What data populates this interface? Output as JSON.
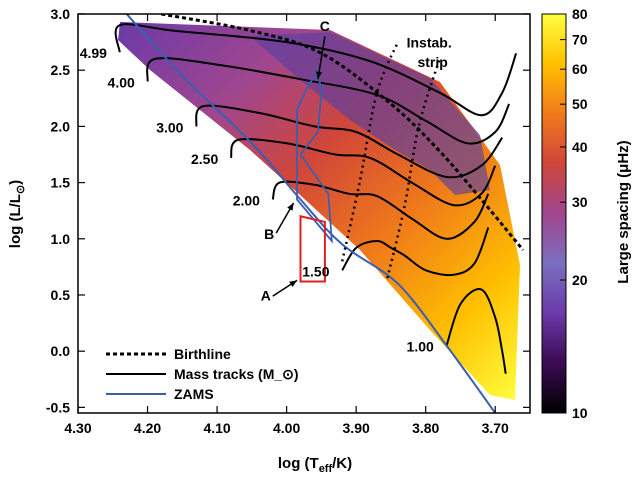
{
  "chart_data": {
    "type": "scatter",
    "xlabel": "log (T_eff/K)",
    "ylabel": "log (L/L_⊙)",
    "xlim": [
      4.3,
      3.65
    ],
    "ylim": [
      -0.55,
      3.0
    ],
    "x_inverted": true,
    "xticks": [
      "4.30",
      "4.20",
      "4.10",
      "4.00",
      "3.90",
      "3.80",
      "3.70"
    ],
    "yticks": [
      "3.0",
      "2.5",
      "2.0",
      "1.5",
      "1.0",
      "0.5",
      "0.0",
      "-0.5"
    ],
    "colorbar": {
      "label": "Large spacing (μHz)",
      "scale": "log",
      "range": [
        10,
        80
      ],
      "ticks": [
        "80",
        "70",
        "60",
        "50",
        "40",
        "30",
        "20",
        "10"
      ],
      "colormap": [
        "#000000",
        "#3a0a52",
        "#6b3aa8",
        "#7a6fc0",
        "#a0468e",
        "#d0463a",
        "#f07a1a",
        "#ffc000",
        "#ffff40"
      ]
    },
    "legend": {
      "placement": "bottom-left",
      "entries": [
        {
          "label": "Birthline",
          "style": "dashed",
          "color": "#000000"
        },
        {
          "label": "Mass tracks (M_⊙)",
          "style": "solid",
          "color": "#000000"
        },
        {
          "label": "ZAMS",
          "style": "solid",
          "color": "#3a5fb0"
        }
      ]
    },
    "mass_labels": [
      "4.99",
      "4.00",
      "3.00",
      "2.50",
      "2.00",
      "1.50",
      "1.00"
    ],
    "annotations": [
      {
        "text": "Instab.",
        "x": 3.795,
        "y": 2.7
      },
      {
        "text": "strip",
        "x": 3.79,
        "y": 2.53
      },
      {
        "text": "A",
        "x": 4.03,
        "y": 0.45
      },
      {
        "text": "B",
        "x": 4.025,
        "y": 1.0
      },
      {
        "text": "C",
        "x": 3.945,
        "y": 2.85
      }
    ],
    "zams": [
      [
        4.23,
        3.0
      ],
      [
        4.15,
        2.45
      ],
      [
        4.05,
        1.85
      ],
      [
        3.98,
        1.35
      ],
      [
        3.92,
        0.95
      ],
      [
        3.84,
        0.6
      ],
      [
        3.77,
        0.05
      ],
      [
        3.7,
        -0.55
      ]
    ],
    "birthline": [
      [
        4.18,
        3.0
      ],
      [
        4.05,
        2.85
      ],
      [
        3.95,
        2.65
      ],
      [
        3.85,
        2.2
      ],
      [
        3.78,
        1.78
      ],
      [
        3.72,
        1.35
      ],
      [
        3.66,
        0.9
      ]
    ],
    "instability_strip": [
      [
        [
          3.92,
          0.8
        ],
        [
          3.895,
          1.5
        ],
        [
          3.87,
          2.3
        ],
        [
          3.84,
          2.75
        ]
      ],
      [
        [
          3.855,
          0.65
        ],
        [
          3.83,
          1.3
        ],
        [
          3.81,
          2.0
        ],
        [
          3.78,
          2.6
        ]
      ]
    ],
    "box_A": [
      [
        3.98,
        0.62
      ],
      [
        3.945,
        0.62
      ],
      [
        3.945,
        1.15
      ],
      [
        3.98,
        1.2
      ]
    ],
    "region_BC": [
      [
        3.98,
        1.75
      ],
      [
        3.94,
        1.4
      ],
      [
        3.935,
        0.98
      ],
      [
        3.985,
        1.35
      ],
      [
        3.985,
        2.15
      ],
      [
        3.97,
        2.35
      ],
      [
        3.955,
        2.5
      ],
      [
        3.95,
        2.3
      ],
      [
        3.955,
        1.95
      ]
    ],
    "mass_tracks": [
      {
        "label": "4.99",
        "points": [
          [
            4.24,
            2.66
          ],
          [
            4.24,
            2.9
          ],
          [
            4.16,
            2.85
          ],
          [
            4.0,
            2.75
          ],
          [
            3.88,
            2.58
          ],
          [
            3.78,
            2.3
          ],
          [
            3.72,
            2.1
          ],
          [
            3.69,
            2.3
          ],
          [
            3.67,
            2.65
          ]
        ]
      },
      {
        "label": "4.00",
        "points": [
          [
            4.2,
            2.4
          ],
          [
            4.19,
            2.6
          ],
          [
            4.1,
            2.55
          ],
          [
            3.98,
            2.42
          ],
          [
            3.87,
            2.28
          ],
          [
            3.8,
            2.05
          ],
          [
            3.74,
            1.85
          ],
          [
            3.7,
            1.95
          ],
          [
            3.68,
            2.2
          ]
        ]
      },
      {
        "label": "3.00",
        "points": [
          [
            4.13,
            2.0
          ],
          [
            4.12,
            2.18
          ],
          [
            4.04,
            2.12
          ],
          [
            3.96,
            2.0
          ],
          [
            3.9,
            1.95
          ],
          [
            3.84,
            1.75
          ],
          [
            3.77,
            1.55
          ],
          [
            3.72,
            1.65
          ],
          [
            3.69,
            1.9
          ]
        ]
      },
      {
        "label": "2.50",
        "points": [
          [
            4.08,
            1.72
          ],
          [
            4.07,
            1.88
          ],
          [
            4.0,
            1.85
          ],
          [
            3.93,
            1.75
          ],
          [
            3.88,
            1.72
          ],
          [
            3.82,
            1.5
          ],
          [
            3.76,
            1.3
          ],
          [
            3.72,
            1.4
          ],
          [
            3.7,
            1.65
          ]
        ]
      },
      {
        "label": "2.00",
        "points": [
          [
            4.02,
            1.35
          ],
          [
            4.01,
            1.5
          ],
          [
            3.96,
            1.48
          ],
          [
            3.91,
            1.4
          ],
          [
            3.87,
            1.38
          ],
          [
            3.82,
            1.18
          ],
          [
            3.77,
            1.0
          ],
          [
            3.73,
            1.15
          ],
          [
            3.71,
            1.4
          ]
        ]
      },
      {
        "label": "1.50",
        "points": [
          [
            3.92,
            0.72
          ],
          [
            3.9,
            0.92
          ],
          [
            3.87,
            0.98
          ],
          [
            3.85,
            0.92
          ],
          [
            3.83,
            0.85
          ],
          [
            3.8,
            0.72
          ],
          [
            3.76,
            0.68
          ],
          [
            3.73,
            0.78
          ],
          [
            3.71,
            1.1
          ]
        ]
      },
      {
        "label": "1.00",
        "points": [
          [
            3.77,
            0.05
          ],
          [
            3.75,
            0.42
          ],
          [
            3.72,
            0.55
          ],
          [
            3.7,
            0.3
          ],
          [
            3.69,
            0.0
          ],
          [
            3.685,
            -0.2
          ]
        ]
      }
    ]
  }
}
